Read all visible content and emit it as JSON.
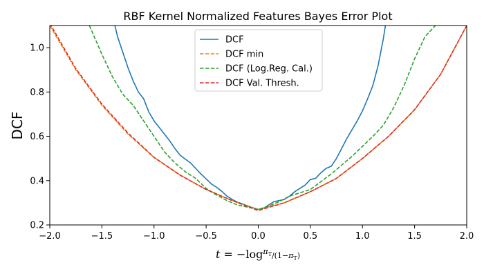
{
  "chart_data": {
    "type": "line",
    "title": "RBF Kernel Normalized Features Bayes Error Plot",
    "xlabel": "t = −log(π_T / (1−π_T))",
    "ylabel": "DCF",
    "xlim": [
      -2.0,
      2.0
    ],
    "ylim": [
      0.2,
      1.1
    ],
    "xticks": [
      -2.0,
      -1.5,
      -1.0,
      -0.5,
      0.0,
      0.5,
      1.0,
      1.5,
      2.0
    ],
    "xtick_labels": [
      "−2.0",
      "−1.5",
      "−1.0",
      "−0.5",
      "0.0",
      "0.5",
      "1.0",
      "1.5",
      "2.0"
    ],
    "yticks": [
      0.2,
      0.4,
      0.6,
      0.8,
      1.0
    ],
    "ytick_labels": [
      "0.2",
      "0.4",
      "0.6",
      "0.8",
      "1.0"
    ],
    "grid": false,
    "legend_position": "top-center",
    "series": [
      {
        "name": "DCF",
        "color": "#1f77b4",
        "dash": "solid",
        "x": [
          -1.4,
          -1.35,
          -1.3,
          -1.25,
          -1.2,
          -1.15,
          -1.1,
          -1.05,
          -1.0,
          -0.95,
          -0.9,
          -0.85,
          -0.8,
          -0.75,
          -0.7,
          -0.65,
          -0.6,
          -0.55,
          -0.5,
          -0.45,
          -0.4,
          -0.35,
          -0.3,
          -0.25,
          -0.2,
          -0.15,
          -0.1,
          -0.05,
          0.0,
          0.05,
          0.1,
          0.15,
          0.2,
          0.25,
          0.3,
          0.35,
          0.4,
          0.45,
          0.5,
          0.55,
          0.6,
          0.65,
          0.7,
          0.75,
          0.8,
          0.85,
          0.9,
          0.95,
          1.0,
          1.05,
          1.1,
          1.15,
          1.2,
          1.22
        ],
        "y": [
          1.15,
          1.05,
          0.98,
          0.91,
          0.85,
          0.8,
          0.77,
          0.71,
          0.67,
          0.64,
          0.61,
          0.58,
          0.545,
          0.515,
          0.497,
          0.48,
          0.455,
          0.43,
          0.408,
          0.385,
          0.37,
          0.352,
          0.33,
          0.315,
          0.303,
          0.295,
          0.285,
          0.277,
          0.27,
          0.275,
          0.29,
          0.305,
          0.31,
          0.315,
          0.33,
          0.35,
          0.365,
          0.38,
          0.405,
          0.41,
          0.435,
          0.455,
          0.465,
          0.5,
          0.545,
          0.59,
          0.63,
          0.67,
          0.715,
          0.77,
          0.83,
          0.92,
          1.04,
          1.1
        ]
      },
      {
        "name": "DCF min",
        "color": "#ff7f0e",
        "dash": "dashed",
        "x": [
          -2.0,
          -1.75,
          -1.5,
          -1.25,
          -1.0,
          -0.75,
          -0.5,
          -0.25,
          0.0,
          0.25,
          0.5,
          0.75,
          1.0,
          1.25,
          1.5,
          1.75,
          2.0
        ],
        "y": [
          1.1,
          0.9,
          0.74,
          0.61,
          0.505,
          0.425,
          0.36,
          0.31,
          0.27,
          0.3,
          0.35,
          0.41,
          0.5,
          0.6,
          0.72,
          0.88,
          1.1
        ]
      },
      {
        "name": "DCF (Log.Reg. Cal.)",
        "color": "#2ca02c",
        "dash": "dashed",
        "x": [
          -1.62,
          -1.5,
          -1.4,
          -1.3,
          -1.2,
          -1.1,
          -1.0,
          -0.9,
          -0.8,
          -0.7,
          -0.6,
          -0.5,
          -0.4,
          -0.3,
          -0.2,
          -0.1,
          0.0,
          0.1,
          0.2,
          0.3,
          0.4,
          0.5,
          0.6,
          0.7,
          0.8,
          0.9,
          1.0,
          1.1,
          1.2,
          1.3,
          1.4,
          1.5,
          1.6,
          1.7
        ],
        "y": [
          1.1,
          0.97,
          0.87,
          0.79,
          0.74,
          0.67,
          0.6,
          0.53,
          0.48,
          0.44,
          0.41,
          0.365,
          0.335,
          0.31,
          0.29,
          0.28,
          0.27,
          0.285,
          0.305,
          0.33,
          0.345,
          0.36,
          0.395,
          0.43,
          0.47,
          0.51,
          0.555,
          0.6,
          0.65,
          0.73,
          0.83,
          0.95,
          1.05,
          1.1
        ]
      },
      {
        "name": "DCF Val. Thresh.",
        "color": "#d62728",
        "dash": "dashed",
        "x": [
          -2.0,
          -1.75,
          -1.5,
          -1.25,
          -1.0,
          -0.75,
          -0.5,
          -0.25,
          0.0,
          0.25,
          0.5,
          0.75,
          1.0,
          1.25,
          1.5,
          1.75,
          2.0
        ],
        "y": [
          1.11,
          0.905,
          0.745,
          0.615,
          0.505,
          0.425,
          0.36,
          0.31,
          0.265,
          0.3,
          0.35,
          0.41,
          0.5,
          0.6,
          0.72,
          0.88,
          1.1
        ]
      }
    ]
  }
}
